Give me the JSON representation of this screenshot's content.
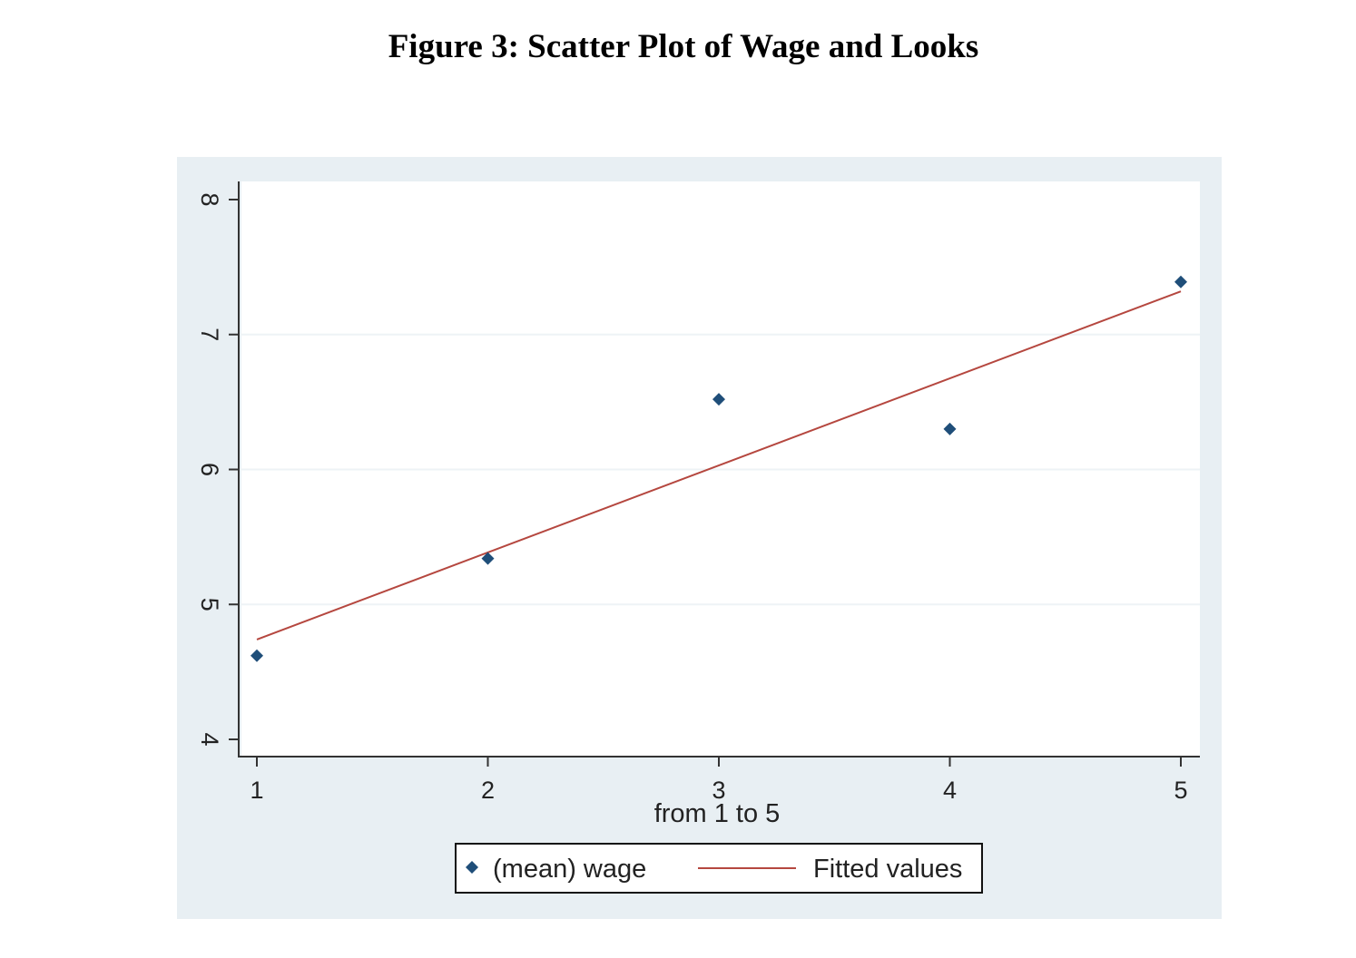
{
  "title": "Figure 3: Scatter Plot of Wage and Looks",
  "chart_data": {
    "type": "scatter",
    "title": "Figure 3: Scatter Plot of Wage and Looks",
    "xlabel": "from 1 to 5",
    "ylabel": "",
    "xlim": [
      1,
      5
    ],
    "ylim": [
      4,
      8
    ],
    "x_ticks": [
      "1",
      "2",
      "3",
      "4",
      "5"
    ],
    "y_ticks": [
      "4",
      "5",
      "6",
      "7",
      "8"
    ],
    "grid": "horizontal",
    "legend_position": "bottom",
    "colors": {
      "frame_background": "#e8eff3",
      "plot_background": "#ffffff",
      "gridline": "#eef3f6",
      "marker": "#1f4e79",
      "fit_line": "#b5473f"
    },
    "series": [
      {
        "name": "(mean) wage",
        "kind": "scatter",
        "marker": "diamond",
        "x": [
          1,
          2,
          3,
          4,
          5
        ],
        "y": [
          4.62,
          5.34,
          6.52,
          6.3,
          7.39
        ]
      },
      {
        "name": "Fitted values",
        "kind": "line",
        "x": [
          1,
          5
        ],
        "y": [
          4.74,
          7.32
        ]
      }
    ]
  }
}
